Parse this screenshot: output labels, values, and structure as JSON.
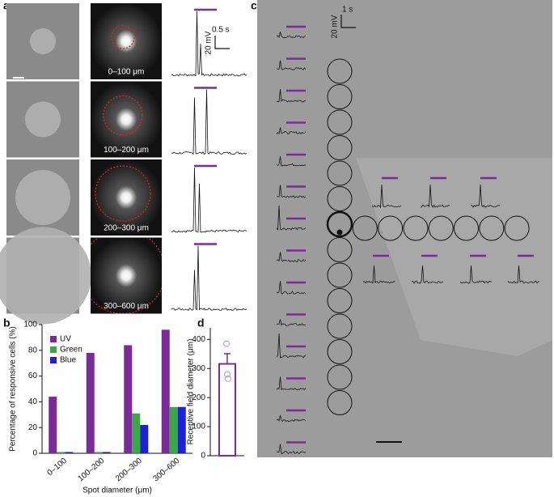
{
  "panel_labels": [
    "a",
    "b",
    "c",
    "d"
  ],
  "panel_a": {
    "spot_labels": [
      "0–100 μm",
      "100–200 μm",
      "200–300 μm",
      "300–600 μm"
    ],
    "time_scale": "0.5 s",
    "voltage_scale": "20 mV"
  },
  "panel_c": {
    "time_scale": "1 s",
    "voltage_scale": "20 mV"
  },
  "chart_data": [
    {
      "type": "bar",
      "categories": [
        "0–100",
        "100–200",
        "200–300",
        "300–600"
      ],
      "series": [
        {
          "name": "UV",
          "color": "#7b2a99",
          "values": [
            44,
            78,
            84,
            96
          ]
        },
        {
          "name": "Green",
          "color": "#3aa844",
          "values": [
            1,
            1,
            31,
            36
          ]
        },
        {
          "name": "Blue",
          "color": "#1f1fe0",
          "values": [
            1,
            1,
            22,
            36
          ]
        }
      ],
      "ylim": [
        0,
        100
      ],
      "yticks": [
        0,
        20,
        40,
        60,
        80,
        100
      ],
      "y_label": "Percentage of responsive cells (%)",
      "x_label": "Spot diameter (μm)",
      "legend": "top-left"
    },
    {
      "type": "bar",
      "values": [
        316
      ],
      "errors": [
        35
      ],
      "points": [
        385,
        280,
        265
      ],
      "color": "#7b2a99",
      "point_color": "#a99ad8",
      "ylim": [
        0,
        440
      ],
      "yticks": [
        0,
        100,
        200,
        300,
        400
      ],
      "y_label": "Receptive field diameter (μm)"
    }
  ]
}
